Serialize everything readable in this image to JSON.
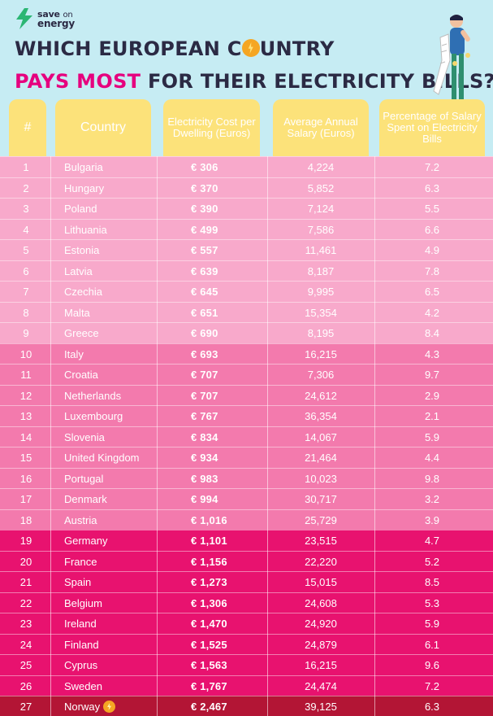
{
  "brand": {
    "line1": "save",
    "line1b": "on",
    "line2": "energy"
  },
  "title": {
    "line1_a": "WHICH EUROPEAN C",
    "line1_b": "UNTRY",
    "line2_accent": "PAYS MOST",
    "line2_rest": " FOR THEIR ELECTRICITY BILLS?"
  },
  "headers": {
    "rank": "#",
    "country": "Country",
    "cost": "Electricity Cost per Dwelling (Euros)",
    "salary": "Average Annual Salary (Euros)",
    "pct": "Percentage of Salary Spent on Electricity Bills"
  },
  "currency_symbol": "€",
  "colors": {
    "background": "#c6ecf3",
    "header_card": "#fce27a",
    "tier1": "#f8a9cb",
    "tier2": "#f37aad",
    "tier3": "#e8126f",
    "tier4": "#b31535",
    "accent": "#e6007e"
  },
  "rows": [
    {
      "rank": "1",
      "country": "Bulgaria",
      "cost": "306",
      "salary": "4,224",
      "pct": "7.2",
      "tier": 1
    },
    {
      "rank": "2",
      "country": "Hungary",
      "cost": "370",
      "salary": "5,852",
      "pct": "6.3",
      "tier": 1
    },
    {
      "rank": "3",
      "country": "Poland",
      "cost": "390",
      "salary": "7,124",
      "pct": "5.5",
      "tier": 1
    },
    {
      "rank": "4",
      "country": "Lithuania",
      "cost": "499",
      "salary": "7,586",
      "pct": "6.6",
      "tier": 1
    },
    {
      "rank": "5",
      "country": "Estonia",
      "cost": "557",
      "salary": "11,461",
      "pct": "4.9",
      "tier": 1
    },
    {
      "rank": "6",
      "country": "Latvia",
      "cost": "639",
      "salary": "8,187",
      "pct": "7.8",
      "tier": 1
    },
    {
      "rank": "7",
      "country": "Czechia",
      "cost": "645",
      "salary": "9,995",
      "pct": "6.5",
      "tier": 1
    },
    {
      "rank": "8",
      "country": "Malta",
      "cost": "651",
      "salary": "15,354",
      "pct": "4.2",
      "tier": 1
    },
    {
      "rank": "9",
      "country": "Greece",
      "cost": "690",
      "salary": "8,195",
      "pct": "8.4",
      "tier": 1
    },
    {
      "rank": "10",
      "country": "Italy",
      "cost": "693",
      "salary": "16,215",
      "pct": "4.3",
      "tier": 2
    },
    {
      "rank": "11",
      "country": "Croatia",
      "cost": "707",
      "salary": "7,306",
      "pct": "9.7",
      "tier": 2
    },
    {
      "rank": "12",
      "country": "Netherlands",
      "cost": "707",
      "salary": "24,612",
      "pct": "2.9",
      "tier": 2
    },
    {
      "rank": "13",
      "country": "Luxembourg",
      "cost": "767",
      "salary": "36,354",
      "pct": "2.1",
      "tier": 2
    },
    {
      "rank": "14",
      "country": "Slovenia",
      "cost": "834",
      "salary": "14,067",
      "pct": "5.9",
      "tier": 2
    },
    {
      "rank": "15",
      "country": "United Kingdom",
      "cost": "934",
      "salary": "21,464",
      "pct": "4.4",
      "tier": 2
    },
    {
      "rank": "16",
      "country": "Portugal",
      "cost": "983",
      "salary": "10,023",
      "pct": "9.8",
      "tier": 2
    },
    {
      "rank": "17",
      "country": "Denmark",
      "cost": "994",
      "salary": "30,717",
      "pct": "3.2",
      "tier": 2
    },
    {
      "rank": "18",
      "country": "Austria",
      "cost": "1,016",
      "salary": "25,729",
      "pct": "3.9",
      "tier": 2
    },
    {
      "rank": "19",
      "country": "Germany",
      "cost": "1,101",
      "salary": "23,515",
      "pct": "4.7",
      "tier": 3
    },
    {
      "rank": "20",
      "country": "France",
      "cost": "1,156",
      "salary": "22,220",
      "pct": "5.2",
      "tier": 3
    },
    {
      "rank": "21",
      "country": "Spain",
      "cost": "1,273",
      "salary": "15,015",
      "pct": "8.5",
      "tier": 3
    },
    {
      "rank": "22",
      "country": "Belgium",
      "cost": "1,306",
      "salary": "24,608",
      "pct": "5.3",
      "tier": 3
    },
    {
      "rank": "23",
      "country": "Ireland",
      "cost": "1,470",
      "salary": "24,920",
      "pct": "5.9",
      "tier": 3
    },
    {
      "rank": "24",
      "country": "Finland",
      "cost": "1,525",
      "salary": "24,879",
      "pct": "6.1",
      "tier": 3
    },
    {
      "rank": "25",
      "country": "Cyprus",
      "cost": "1,563",
      "salary": "16,215",
      "pct": "9.6",
      "tier": 3
    },
    {
      "rank": "26",
      "country": "Sweden",
      "cost": "1,767",
      "salary": "24,474",
      "pct": "7.2",
      "tier": 3
    },
    {
      "rank": "27",
      "country": "Norway",
      "cost": "2,467",
      "salary": "39,125",
      "pct": "6.3",
      "tier": 4,
      "icon": "lightning-bolt-icon"
    }
  ]
}
